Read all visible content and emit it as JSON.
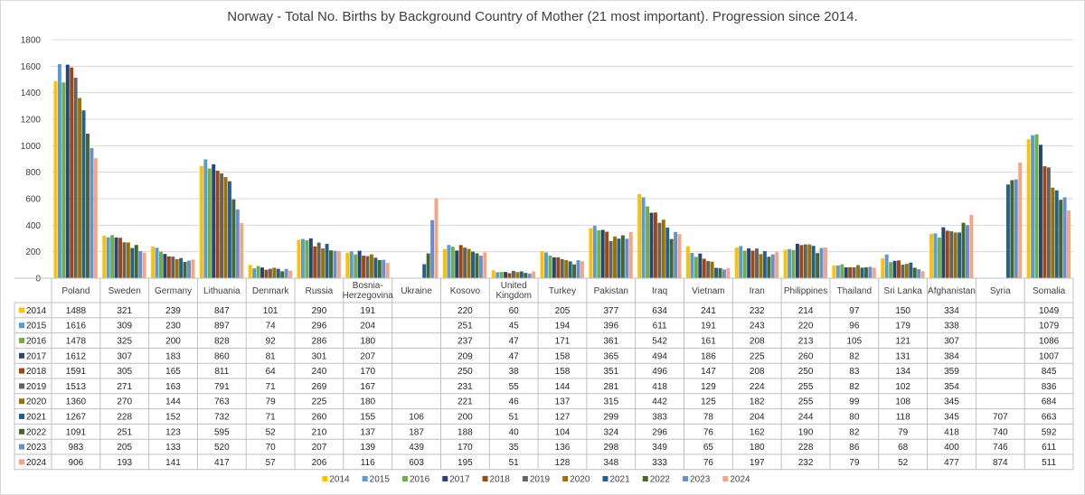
{
  "chart_data": {
    "type": "bar",
    "title": "Norway - Total No. Births by Background Country of Mother (21 most important). Progression since 2014.",
    "ylim": [
      0,
      1800
    ],
    "yticks": [
      0,
      200,
      400,
      600,
      800,
      1000,
      1200,
      1400,
      1600,
      1800
    ],
    "grid": true,
    "legend_position": "bottom",
    "categories": [
      [
        "Poland"
      ],
      [
        "Sweden"
      ],
      [
        "Germany"
      ],
      [
        "Lithuania"
      ],
      [
        "Denmark"
      ],
      [
        "Russia"
      ],
      [
        "Bosnia-",
        "Herzegovina"
      ],
      [
        "Ukraine"
      ],
      [
        "Kosovo"
      ],
      [
        "United",
        "Kingdom"
      ],
      [
        "Turkey"
      ],
      [
        "Pakistan"
      ],
      [
        "Iraq"
      ],
      [
        "Vietnam"
      ],
      [
        "Iran"
      ],
      [
        "Philippines"
      ],
      [
        "Thailand"
      ],
      [
        "Sri Lanka"
      ],
      [
        "Afghanistan"
      ],
      [
        "Syria"
      ],
      [
        "Somalia"
      ]
    ],
    "series": [
      {
        "name": "2014",
        "color": "#FFC000",
        "values": [
          1488,
          321,
          239,
          847,
          101,
          290,
          191,
          null,
          220,
          60,
          205,
          377,
          634,
          241,
          232,
          214,
          97,
          150,
          334,
          null,
          1049
        ]
      },
      {
        "name": "2015",
        "color": "#5B9BD5",
        "values": [
          1616,
          309,
          230,
          897,
          74,
          296,
          204,
          null,
          251,
          45,
          194,
          396,
          611,
          191,
          243,
          220,
          96,
          179,
          338,
          null,
          1079
        ]
      },
      {
        "name": "2016",
        "color": "#70AD47",
        "values": [
          1478,
          325,
          200,
          828,
          92,
          286,
          180,
          null,
          237,
          47,
          171,
          361,
          542,
          161,
          208,
          213,
          105,
          121,
          307,
          null,
          1086
        ]
      },
      {
        "name": "2017",
        "color": "#264478",
        "values": [
          1612,
          307,
          183,
          860,
          81,
          301,
          207,
          null,
          209,
          47,
          158,
          365,
          494,
          186,
          225,
          260,
          82,
          131,
          384,
          null,
          1007
        ]
      },
      {
        "name": "2018",
        "color": "#9E480E",
        "values": [
          1591,
          305,
          165,
          811,
          64,
          240,
          170,
          null,
          250,
          38,
          158,
          351,
          496,
          147,
          208,
          250,
          83,
          134,
          359,
          null,
          845
        ]
      },
      {
        "name": "2019",
        "color": "#636363",
        "values": [
          1513,
          271,
          163,
          791,
          71,
          269,
          167,
          null,
          231,
          55,
          144,
          281,
          418,
          129,
          224,
          255,
          82,
          102,
          354,
          null,
          836
        ]
      },
      {
        "name": "2020",
        "color": "#997300",
        "values": [
          1360,
          270,
          144,
          763,
          79,
          225,
          180,
          null,
          221,
          46,
          137,
          315,
          442,
          125,
          182,
          255,
          99,
          108,
          345,
          null,
          684
        ]
      },
      {
        "name": "2021",
        "color": "#255E91",
        "values": [
          1267,
          228,
          152,
          732,
          71,
          260,
          155,
          106,
          200,
          51,
          127,
          299,
          383,
          78,
          204,
          244,
          80,
          118,
          345,
          707,
          663
        ]
      },
      {
        "name": "2022",
        "color": "#43682B",
        "values": [
          1091,
          251,
          123,
          595,
          52,
          210,
          137,
          187,
          188,
          40,
          104,
          324,
          296,
          76,
          162,
          190,
          82,
          79,
          418,
          740,
          592
        ]
      },
      {
        "name": "2023",
        "color": "#698ED0",
        "values": [
          983,
          205,
          133,
          520,
          70,
          207,
          139,
          439,
          170,
          35,
          136,
          298,
          349,
          65,
          180,
          228,
          86,
          68,
          400,
          746,
          611
        ]
      },
      {
        "name": "2024",
        "color": "#F4A582",
        "values": [
          906,
          193,
          141,
          417,
          57,
          206,
          116,
          603,
          195,
          51,
          128,
          348,
          333,
          76,
          197,
          232,
          79,
          52,
          477,
          874,
          511
        ]
      }
    ]
  }
}
